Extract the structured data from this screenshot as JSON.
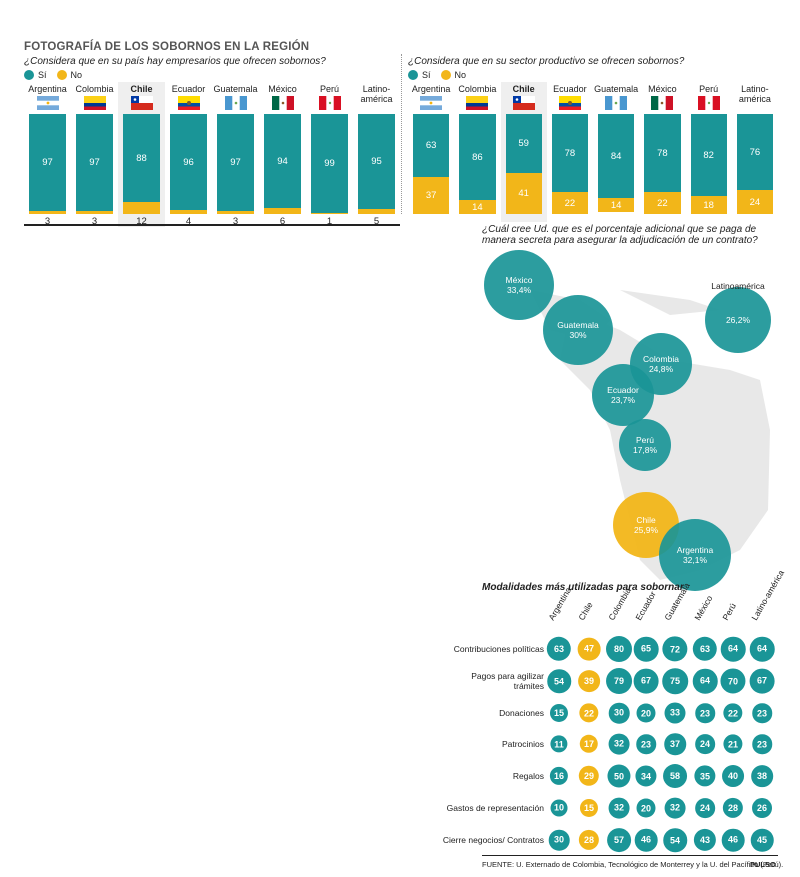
{
  "title": "FOTOGRAFÍA DE LOS SOBORNOS EN LA REGIÓN",
  "legend": {
    "yes": "Sí",
    "no": "No"
  },
  "colors": {
    "teal": "#1a9597",
    "yellow": "#f2b619",
    "highlight": "#efefef"
  },
  "countries": [
    {
      "name": "Argentina",
      "flag": "flag-argentina"
    },
    {
      "name": "Colombia",
      "flag": "flag-colombia"
    },
    {
      "name": "Chile",
      "flag": "flag-chile"
    },
    {
      "name": "Ecuador",
      "flag": "flag-ecuador"
    },
    {
      "name": "Guatemala",
      "flag": "flag-guatemala"
    },
    {
      "name": "México",
      "flag": "flag-mexico"
    },
    {
      "name": "Perú",
      "flag": "flag-peru"
    },
    {
      "name": "Latino-\namérica",
      "flag": ""
    }
  ],
  "chart_data": [
    {
      "type": "bar",
      "title": "¿Considera que en su país hay empresarios que ofrecen sobornos?",
      "categories": [
        "Argentina",
        "Colombia",
        "Chile",
        "Ecuador",
        "Guatemala",
        "México",
        "Perú",
        "Latino-américa"
      ],
      "series": [
        {
          "name": "Sí",
          "values": [
            97,
            97,
            88,
            96,
            97,
            94,
            99,
            95
          ]
        },
        {
          "name": "No",
          "values": [
            3,
            3,
            12,
            4,
            3,
            6,
            1,
            5
          ]
        }
      ],
      "highlight": "Chile"
    },
    {
      "type": "bar",
      "title": "¿Considera que en su sector productivo se ofrecen sobornos?",
      "categories": [
        "Argentina",
        "Colombia",
        "Chile",
        "Ecuador",
        "Guatemala",
        "México",
        "Perú",
        "Latino-américa"
      ],
      "series": [
        {
          "name": "Sí",
          "values": [
            63,
            86,
            59,
            78,
            84,
            78,
            82,
            76
          ]
        },
        {
          "name": "No",
          "values": [
            37,
            14,
            41,
            22,
            14,
            22,
            18,
            24
          ]
        }
      ],
      "highlight": "Chile"
    },
    {
      "type": "scatter",
      "title": "¿Cuál cree Ud. que es el porcentaje adicional que se paga de manera secreta para asegurar la adjudicación de un contrato?",
      "points": [
        {
          "name": "México",
          "label": "33,4%",
          "value": 33.4
        },
        {
          "name": "Guatemala",
          "label": "30%",
          "value": 30.0
        },
        {
          "name": "Latinoamérica",
          "label": "26,2%",
          "value": 26.2
        },
        {
          "name": "Colombia",
          "label": "24,8%",
          "value": 24.8
        },
        {
          "name": "Ecuador",
          "label": "23,7%",
          "value": 23.7
        },
        {
          "name": "Perú",
          "label": "17,8%",
          "value": 17.8
        },
        {
          "name": "Chile",
          "label": "25,9%",
          "value": 25.9
        },
        {
          "name": "Argentina",
          "label": "32,1%",
          "value": 32.1
        }
      ]
    },
    {
      "type": "table",
      "title": "Modalidades más utilizadas para sobornar",
      "columns": [
        "Argentina",
        "Chile",
        "Colombia",
        "Ecuador",
        "Guatemala",
        "México",
        "Perú",
        "Latino-américa"
      ],
      "rows": [
        {
          "label": "Contribuciones políticas",
          "values": [
            63,
            47,
            80,
            65,
            72,
            63,
            64,
            64
          ]
        },
        {
          "label": "Pagos para agilizar trámites",
          "values": [
            54,
            39,
            79,
            67,
            75,
            64,
            70,
            67
          ]
        },
        {
          "label": "Donaciones",
          "values": [
            15,
            22,
            30,
            20,
            33,
            23,
            22,
            23
          ]
        },
        {
          "label": "Patrocinios",
          "values": [
            11,
            17,
            32,
            23,
            37,
            24,
            21,
            23
          ]
        },
        {
          "label": "Regalos",
          "values": [
            16,
            29,
            50,
            34,
            58,
            35,
            40,
            38
          ]
        },
        {
          "label": "Gastos de representación",
          "values": [
            10,
            15,
            32,
            20,
            32,
            24,
            28,
            26
          ]
        },
        {
          "label": "Cierre negocios/ Contratos",
          "values": [
            30,
            28,
            57,
            46,
            54,
            43,
            46,
            45
          ]
        }
      ],
      "highlight": "Chile"
    }
  ],
  "source": "FUENTE: U. Externado de Colombia, Tecnológico de Monterrey y la U. del Pacífico (Perú).",
  "brand": "PULSO"
}
